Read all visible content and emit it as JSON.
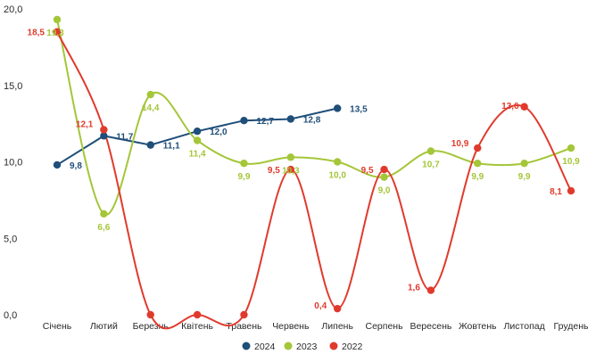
{
  "chart_data": {
    "type": "line",
    "categories": [
      "Січень",
      "Лютий",
      "Березнь",
      "Квітень",
      "Травень",
      "Червень",
      "Липень",
      "Серпень",
      "Вересень",
      "Жовтень",
      "Листопад",
      "Грудень"
    ],
    "ylim": [
      0,
      20
    ],
    "yticks": [
      "0,0",
      "5,0",
      "10,0",
      "15,0",
      "20,0"
    ],
    "grid": false,
    "legend_position": "bottom",
    "series": [
      {
        "name": "2024",
        "color": "#1f4e79",
        "smooth": false,
        "values": [
          9.8,
          11.7,
          11.1,
          12.0,
          12.7,
          12.8,
          13.5,
          null,
          null,
          null,
          null,
          null
        ],
        "labels": [
          "9,8",
          "11,7",
          "11,1",
          "12,0",
          "12,7",
          "12,8",
          "13,5",
          "",
          "",
          "",
          "",
          ""
        ]
      },
      {
        "name": "2023",
        "color": "#a4c639",
        "smooth": true,
        "values": [
          19.3,
          6.6,
          14.4,
          11.4,
          9.9,
          10.3,
          10.0,
          9.0,
          10.7,
          9.9,
          9.9,
          10.9
        ],
        "labels": [
          "19,3",
          "6,6",
          "14,4",
          "11,4",
          "9,9",
          "10,3",
          "10,0",
          "9,0",
          "10,7",
          "9,9",
          "9,9",
          "10,9"
        ]
      },
      {
        "name": "2022",
        "color": "#e03a2d",
        "smooth": true,
        "values": [
          18.5,
          12.1,
          0.0,
          0.0,
          0.0,
          9.5,
          0.4,
          9.5,
          1.6,
          10.9,
          13.6,
          8.1
        ],
        "labels": [
          "18,5",
          "12,1",
          "",
          "",
          "",
          "9,5",
          "0,4",
          "9,5",
          "1,6",
          "10,9",
          "13,6",
          "8,1"
        ]
      }
    ]
  }
}
